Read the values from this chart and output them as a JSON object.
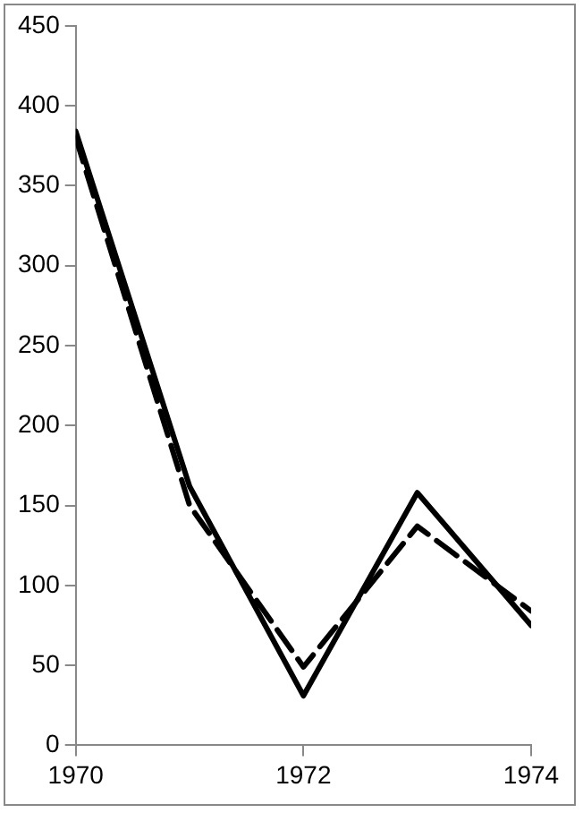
{
  "chart_data": {
    "type": "line",
    "x": [
      1970,
      1971,
      1972,
      1973,
      1974
    ],
    "series": [
      {
        "color": "#000000",
        "line_style": "solid",
        "values": [
          384,
          162,
          31,
          158,
          75
        ]
      },
      {
        "color": "#000000",
        "line_style": "dashed",
        "values": [
          380,
          150,
          49,
          137,
          84
        ]
      }
    ],
    "xlim": [
      1970,
      1974
    ],
    "xticks": [
      1970,
      1972,
      1974
    ],
    "ylim": [
      0,
      450
    ],
    "yticks": [
      0,
      50,
      100,
      150,
      200,
      250,
      300,
      350,
      400,
      450
    ],
    "grid": false,
    "legend": false,
    "marker": "none"
  }
}
